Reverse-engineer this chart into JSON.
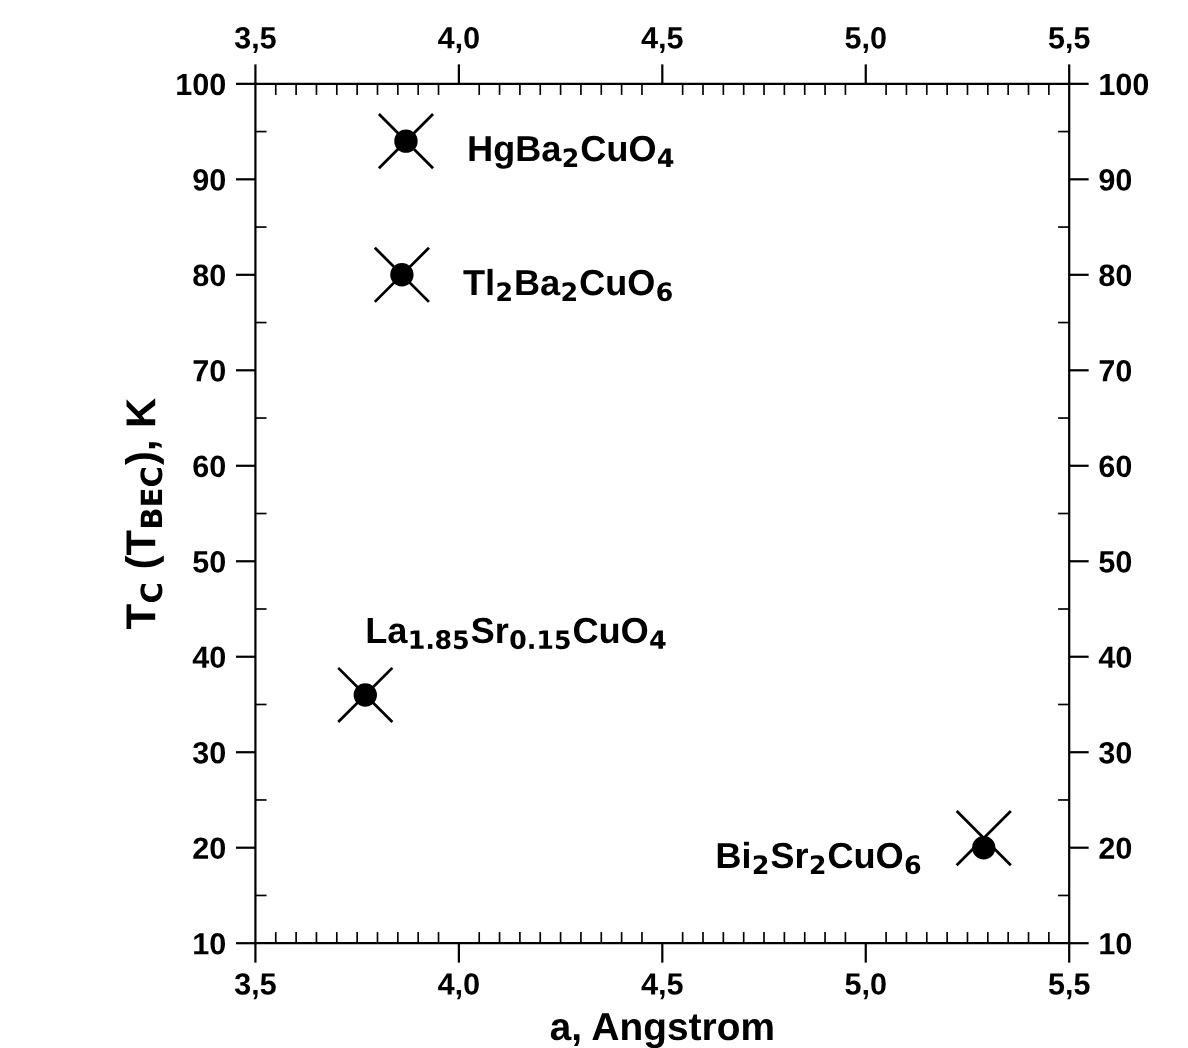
{
  "chart_data": {
    "type": "scatter",
    "xlabel": "a, Angstrom",
    "ylabel": "T$_{C}$ (T$_{BEC}$), K",
    "xlim": [
      3.5,
      5.5
    ],
    "xticks": [
      {
        "value": 3.5,
        "label": "3,5"
      },
      {
        "value": 4.0,
        "label": "4,0"
      },
      {
        "value": 4.5,
        "label": "4,5"
      },
      {
        "value": 5.0,
        "label": "5,0"
      },
      {
        "value": 5.5,
        "label": "5,5"
      }
    ],
    "x2lim": [
      3.5,
      5.5
    ],
    "x2ticks": [
      {
        "value": 3.5,
        "label": "3,5"
      },
      {
        "value": 4.0,
        "label": "4,0"
      },
      {
        "value": 4.5,
        "label": "4,5"
      },
      {
        "value": 5.0,
        "label": "5,0"
      },
      {
        "value": 5.5,
        "label": "5,5"
      }
    ],
    "ylim": [
      10,
      100
    ],
    "yticks": [
      10,
      20,
      30,
      40,
      50,
      60,
      70,
      80,
      90,
      100
    ],
    "y2lim": [
      10,
      100
    ],
    "y2ticks": [
      10,
      20,
      30,
      40,
      50,
      60,
      70,
      80,
      90,
      100
    ],
    "grid": false,
    "series": [
      {
        "color": "#000000",
        "marker": "circle",
        "x": [
          3.87,
          3.86,
          3.77,
          5.29
        ],
        "values": [
          94,
          80,
          36,
          20
        ]
      },
      {
        "color": "#000000",
        "marker": "cross",
        "x": [
          3.87,
          3.86,
          3.77,
          5.29
        ],
        "values": [
          94,
          80,
          36,
          21
        ]
      }
    ],
    "annotations": [
      {
        "text": "HgBa$_{2}$CuO$_{4}$",
        "x": 3.87,
        "y": 94
      },
      {
        "text": "Tl$_{2}$Ba$_{2}$CuO$_{6}$",
        "x": 3.86,
        "y": 80
      },
      {
        "text": "La$_{1.85}$Sr$_{0.15}$CuO$_{4}$",
        "x": 3.77,
        "y": 36
      },
      {
        "text": "Bi$_{2}$Sr$_{2}$CuO$_{6}$",
        "x": 5.29,
        "y": 20
      }
    ]
  }
}
